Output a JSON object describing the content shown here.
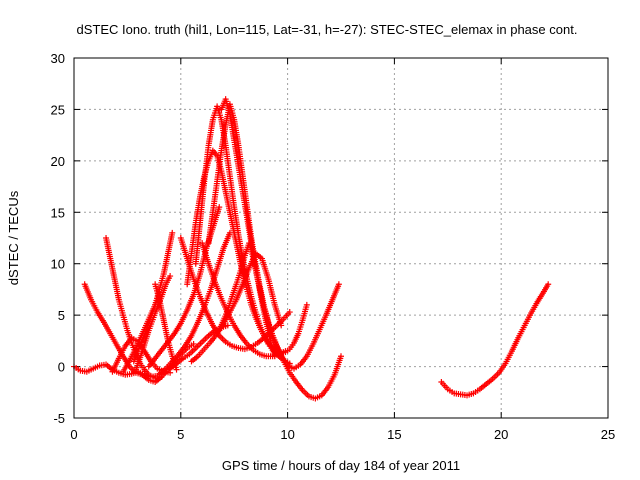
{
  "chart_data": {
    "type": "scatter",
    "title": "dSTEC Iono. truth (hil1, Lon=115, Lat=-31, h=-27): STEC-STEC_elemax in phase cont.",
    "xlabel": "GPS time / hours of day 184 of year 2011",
    "ylabel": "dSTEC  / TECUs",
    "xlim": [
      0,
      25
    ],
    "ylim": [
      -5,
      30
    ],
    "xticks": [
      0,
      5,
      10,
      15,
      20,
      25
    ],
    "yticks": [
      -5,
      0,
      5,
      10,
      15,
      20,
      25,
      30
    ],
    "xtick_labels": [
      "0",
      "5",
      "10",
      "15",
      "20",
      "25"
    ],
    "ytick_labels": [
      "-5",
      "0",
      "5",
      "10",
      "15",
      "20",
      "25",
      "30"
    ],
    "grid": true,
    "marker": "+",
    "color": "#ff0000",
    "series": [
      {
        "x": [
          0.0,
          0.3,
          0.6,
          0.9,
          1.2,
          1.5,
          1.8,
          2.1,
          2.4,
          2.7,
          3.0,
          3.3,
          3.6,
          3.9,
          4.2
        ],
        "y": [
          0.0,
          -0.4,
          -0.5,
          -0.2,
          0.1,
          0.2,
          -0.3,
          -0.6,
          -0.8,
          -0.7,
          -0.5,
          -0.8,
          -1.0,
          -0.9,
          -0.5
        ]
      },
      {
        "x": [
          0.5,
          0.8,
          1.1,
          1.4,
          1.7,
          2.0,
          2.3,
          2.6,
          2.9,
          3.2
        ],
        "y": [
          8.0,
          6.5,
          5.3,
          4.3,
          3.2,
          2.1,
          1.0,
          0.0,
          -0.6,
          -0.8
        ]
      },
      {
        "x": [
          1.5,
          1.7,
          1.9,
          2.1,
          2.3,
          2.5,
          2.7,
          2.9,
          3.1,
          3.3,
          3.5,
          3.7,
          3.9,
          4.1
        ],
        "y": [
          12.5,
          10.5,
          8.5,
          6.5,
          5.0,
          3.5,
          2.3,
          1.2,
          0.3,
          -0.3,
          -0.8,
          -1.0,
          -1.2,
          -1.0
        ]
      },
      {
        "x": [
          1.8,
          2.1,
          2.4,
          2.7,
          3.0,
          3.3,
          3.6,
          3.9,
          4.2,
          4.5
        ],
        "y": [
          -0.5,
          0.8,
          2.0,
          2.8,
          2.4,
          1.5,
          0.5,
          -0.2,
          -0.5,
          -0.6
        ]
      },
      {
        "x": [
          2.8,
          3.0,
          3.2,
          3.4,
          3.6,
          3.8,
          4.0,
          4.2,
          4.4,
          4.6
        ],
        "y": [
          0.5,
          1.5,
          2.6,
          3.6,
          4.8,
          6.0,
          7.5,
          9.0,
          11.0,
          13.0
        ]
      },
      {
        "x": [
          2.3,
          2.6,
          2.9,
          3.2,
          3.5,
          3.8,
          4.0
        ],
        "y": [
          -0.5,
          0.6,
          1.8,
          3.2,
          4.6,
          6.0,
          7.0
        ]
      },
      {
        "x": [
          2.9,
          3.2,
          3.5,
          3.8,
          4.1,
          4.3,
          4.5
        ],
        "y": [
          -0.3,
          1.5,
          3.5,
          5.2,
          6.8,
          8.0,
          8.8
        ]
      },
      {
        "x": [
          3.2,
          3.5,
          3.8,
          4.1,
          4.4,
          4.7,
          5.0,
          5.3,
          5.6
        ],
        "y": [
          -0.8,
          -1.3,
          -1.5,
          -1.0,
          -0.3,
          0.5,
          1.2,
          1.8,
          2.2
        ]
      },
      {
        "x": [
          3.5,
          3.8,
          4.1,
          4.4,
          4.7,
          5.0,
          5.3,
          5.6,
          5.9,
          6.2,
          6.5,
          6.8
        ],
        "y": [
          0.0,
          0.8,
          1.6,
          2.4,
          3.2,
          4.2,
          5.5,
          7.0,
          9.0,
          11.5,
          13.5,
          15.5
        ]
      },
      {
        "x": [
          3.8,
          4.0,
          4.2,
          4.4,
          4.6,
          4.8
        ],
        "y": [
          8.0,
          6.5,
          4.5,
          2.5,
          1.0,
          -0.3
        ]
      },
      {
        "x": [
          4.0,
          4.3,
          4.6,
          4.9,
          5.2,
          5.5,
          5.8,
          6.1,
          6.4,
          6.7,
          7.0,
          7.3
        ],
        "y": [
          -0.7,
          -0.2,
          0.5,
          1.2,
          2.0,
          3.0,
          4.3,
          5.8,
          7.5,
          9.5,
          11.5,
          13.0
        ]
      },
      {
        "x": [
          4.5,
          4.8,
          5.1,
          5.4,
          5.7,
          6.0,
          6.3,
          6.6,
          6.9,
          7.2
        ],
        "y": [
          -0.2,
          0.3,
          0.8,
          1.2,
          1.8,
          2.4,
          3.0,
          3.5,
          3.8,
          4.0
        ]
      },
      {
        "x": [
          5.0,
          5.3,
          5.6,
          5.9,
          6.2,
          6.5,
          6.8,
          7.1,
          7.4,
          7.7,
          8.0,
          8.3,
          8.6,
          8.9,
          9.2,
          9.5,
          9.8,
          10.1
        ],
        "y": [
          12.5,
          10.5,
          8.5,
          6.8,
          5.3,
          4.0,
          3.0,
          2.4,
          2.0,
          1.8,
          1.7,
          1.9,
          2.3,
          2.8,
          3.4,
          4.0,
          4.6,
          5.3
        ]
      },
      {
        "x": [
          5.3,
          5.5,
          5.7,
          5.9,
          6.1,
          6.3,
          6.5,
          6.7,
          6.9,
          7.1,
          7.3,
          7.5,
          7.7,
          7.9,
          8.1,
          8.3,
          8.5,
          8.7,
          8.9,
          9.1,
          9.3,
          9.5,
          9.7,
          9.9,
          10.1,
          10.3,
          10.5,
          10.7,
          10.9
        ],
        "y": [
          8.0,
          11.0,
          14.0,
          16.5,
          18.5,
          20.0,
          21.0,
          20.5,
          19.0,
          17.0,
          15.0,
          13.0,
          11.0,
          9.0,
          7.5,
          6.0,
          4.8,
          3.8,
          3.0,
          2.3,
          1.8,
          1.5,
          1.3,
          1.4,
          1.7,
          2.3,
          3.2,
          4.5,
          6.0
        ]
      },
      {
        "x": [
          5.7,
          5.9,
          6.1,
          6.3,
          6.5,
          6.7,
          6.9,
          7.1,
          7.3,
          7.5,
          7.7,
          7.9,
          8.1,
          8.3,
          8.5,
          8.7,
          8.9,
          9.1,
          9.3,
          9.5,
          9.7,
          9.9,
          10.1
        ],
        "y": [
          10.0,
          14.0,
          18.0,
          21.5,
          24.0,
          25.3,
          24.0,
          21.5,
          18.5,
          15.5,
          12.8,
          10.5,
          8.5,
          6.8,
          5.3,
          4.0,
          3.0,
          2.2,
          1.6,
          1.2,
          0.8,
          0.5,
          0.3
        ]
      },
      {
        "x": [
          6.3,
          6.5,
          6.7,
          6.9,
          7.1,
          7.3,
          7.5,
          7.7,
          7.9,
          8.1,
          8.3,
          8.5,
          8.7,
          8.9,
          9.1,
          9.3,
          9.5,
          9.7,
          9.9,
          10.1,
          10.3,
          10.6,
          10.9,
          11.2,
          11.5,
          11.8,
          12.1,
          12.4
        ],
        "y": [
          12.0,
          15.0,
          18.0,
          21.0,
          23.5,
          25.5,
          24.0,
          21.5,
          18.5,
          15.5,
          12.5,
          10.0,
          7.8,
          5.8,
          4.2,
          3.0,
          2.0,
          1.1,
          0.4,
          0.0,
          -0.2,
          0.2,
          1.0,
          2.2,
          3.6,
          5.0,
          6.5,
          8.0
        ]
      },
      {
        "x": [
          6.9,
          7.1,
          7.3,
          7.5,
          7.7,
          7.9,
          8.1,
          8.3,
          8.5,
          8.7,
          8.9,
          9.1,
          9.3,
          9.5,
          9.7,
          9.9,
          10.1,
          10.4,
          10.7,
          11.0,
          11.3,
          11.6,
          11.9,
          12.2,
          12.5
        ],
        "y": [
          25.0,
          26.0,
          24.5,
          22.0,
          19.5,
          17.0,
          14.5,
          12.0,
          9.5,
          7.5,
          5.8,
          4.3,
          3.0,
          1.9,
          1.0,
          0.2,
          -0.6,
          -1.5,
          -2.3,
          -2.9,
          -3.1,
          -2.8,
          -2.0,
          -0.8,
          1.0
        ]
      },
      {
        "x": [
          6.8,
          7.0,
          7.2,
          7.4,
          7.6,
          7.8,
          8.0,
          8.2,
          8.4,
          8.6,
          8.8,
          9.0,
          9.2,
          9.4
        ],
        "y": [
          3.5,
          4.5,
          5.5,
          6.8,
          8.0,
          9.3,
          10.8,
          12.0,
          10.5,
          8.5,
          6.3,
          4.3,
          2.5,
          1.0
        ]
      },
      {
        "x": [
          5.5,
          5.8,
          6.1,
          6.4,
          6.7,
          7.0,
          7.3,
          7.6,
          7.9,
          8.2,
          8.5,
          8.8,
          9.1,
          9.4,
          9.7
        ],
        "y": [
          0.5,
          1.0,
          1.7,
          2.4,
          3.2,
          4.2,
          5.3,
          6.5,
          8.0,
          9.6,
          11.0,
          10.5,
          8.5,
          6.0,
          4.0
        ]
      },
      {
        "x": [
          6.0,
          6.3,
          6.6,
          6.9,
          7.2,
          7.5,
          7.8,
          8.1,
          8.4,
          8.7,
          9.0,
          9.3,
          9.6,
          9.9
        ],
        "y": [
          12.0,
          10.0,
          8.2,
          6.6,
          5.2,
          4.0,
          3.0,
          2.2,
          1.6,
          1.2,
          1.0,
          1.0,
          1.2,
          1.5
        ]
      },
      {
        "x": [
          17.2,
          17.5,
          17.8,
          18.1,
          18.4,
          18.7,
          19.0,
          19.3,
          19.6,
          19.9,
          20.2,
          20.5,
          20.8,
          21.1,
          21.4,
          21.7,
          22.0,
          22.2
        ],
        "y": [
          -1.5,
          -2.2,
          -2.6,
          -2.7,
          -2.8,
          -2.6,
          -2.2,
          -1.7,
          -1.2,
          -0.6,
          0.3,
          1.5,
          2.8,
          4.0,
          5.2,
          6.3,
          7.3,
          8.0
        ]
      }
    ]
  }
}
